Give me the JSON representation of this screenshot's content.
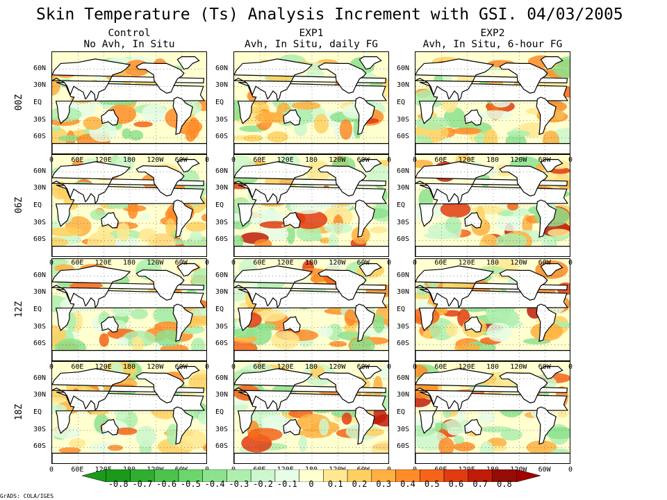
{
  "title": "Skin Temperature (Ts) Analysis Increment with GSI. 04/03/2005",
  "columns": [
    {
      "name": "Control",
      "sub": "No Avh, In Situ"
    },
    {
      "name": "EXP1",
      "sub": "Avh, In Situ, daily FG"
    },
    {
      "name": "EXP2",
      "sub": "Avh, In Situ, 6-hour FG"
    }
  ],
  "rows": [
    "00Z",
    "06Z",
    "12Z",
    "18Z"
  ],
  "lat_ticks": [
    "60N",
    "30N",
    "EQ",
    "30S",
    "60S"
  ],
  "lon_ticks": [
    "0",
    "60E",
    "120E",
    "180",
    "120W",
    "60W",
    "0"
  ],
  "colorbar": {
    "labels": [
      "-0.8",
      "-0.7",
      "-0.6",
      "-0.5",
      "-0.4",
      "-0.3",
      "-0.2",
      "-0.1",
      "0",
      "0.1",
      "0.2",
      "0.3",
      "0.4",
      "0.5",
      "0.6",
      "0.7",
      "0.8"
    ],
    "colors": [
      "#1a9a1a",
      "#2fae2f",
      "#4cc44c",
      "#6bd66b",
      "#8de28d",
      "#aeeeae",
      "#cdf7cd",
      "#e6fde6",
      "#ffffd0",
      "#ffe890",
      "#ffd060",
      "#ffb040",
      "#ff8c28",
      "#f56418",
      "#e03c10",
      "#c01c08",
      "#960c04"
    ],
    "low_color": "#1a9a1a",
    "high_color": "#a00000"
  },
  "footer": "GrADS: COLA/IGES"
}
